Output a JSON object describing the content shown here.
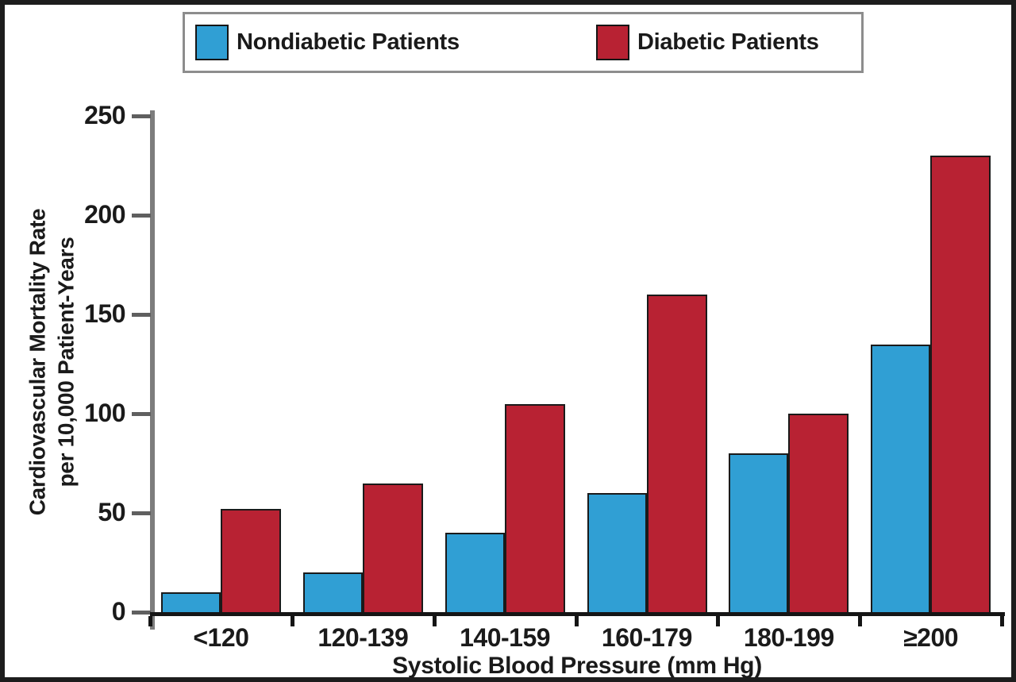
{
  "chart_data": {
    "type": "bar",
    "categories": [
      "<120",
      "120-139",
      "140-159",
      "160-179",
      "180-199",
      "≥200"
    ],
    "series": [
      {
        "name": "Nondiabetic Patients",
        "color": "#309FD4",
        "values": [
          10,
          20,
          40,
          60,
          80,
          135
        ]
      },
      {
        "name": "Diabetic Patients",
        "color": "#B82233",
        "values": [
          52,
          65,
          105,
          160,
          100,
          230
        ]
      }
    ],
    "title": "",
    "xlabel": "Systolic Blood Pressure (mm Hg)",
    "ylabel_line1": "Cardiovascular Mortality Rate",
    "ylabel_line2": "per 10,000 Patient-Years",
    "yticks": [
      0,
      50,
      100,
      150,
      200,
      250
    ],
    "ylim": [
      0,
      250
    ],
    "grid": "off",
    "legend_position": "top"
  },
  "colors": {
    "axis_line": "#7d7d7d",
    "baseline": "#151515",
    "text": "#1a1a1a",
    "legend_border": "#8d8d8d",
    "frame_border": "#1d1d1d",
    "bar_outline": "#1a1a1a"
  }
}
